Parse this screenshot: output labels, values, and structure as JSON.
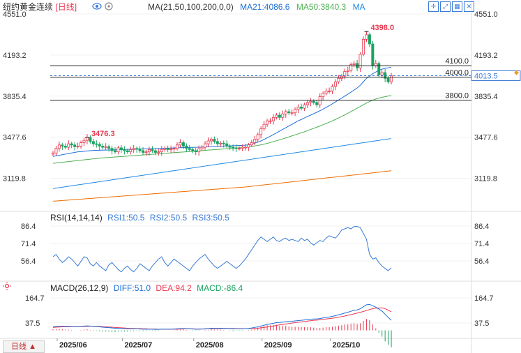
{
  "header": {
    "instrument": "纽约黄金连续",
    "period": "[日线]",
    "ma_params": "MA(21,50,100,200,0,0)",
    "ma21": "MA21:4086.6",
    "ma50": "MA50:3840.3",
    "ma_label": "MA"
  },
  "rsi_header": {
    "params": "RSI(14,14,14)",
    "rsi1": "RSI1:50.5",
    "rsi2": "RSI2:50.5",
    "rsi3": "RSI3:50.5"
  },
  "macd_header": {
    "params": "MACD(26,12,9)",
    "diff": "DIFF:51.0",
    "dea": "DEA:94.2",
    "macd": "MACD:-86.4"
  },
  "period_button": "日线 ▲",
  "colors": {
    "up": "#e8384f",
    "down": "#1aa260",
    "ma21": "#1e6fd9",
    "ma50": "#4caf50",
    "ma100": "#1e88e5",
    "ma200": "#ef6c00",
    "rsi": "#3a7bd5",
    "diff": "#1e6fd9",
    "dea": "#e8384f",
    "accent": "#3a7bd5"
  },
  "icons": [
    "crosshair-icon",
    "expand-icon",
    "grid-icon",
    "close-icon",
    "eye-icon",
    "settings-icon"
  ],
  "chart_data": [
    {
      "type": "candlestick",
      "name": "price",
      "x_ticks": [
        "2025/06",
        "2025/07",
        "2025/08",
        "2025/09",
        "2025/10"
      ],
      "y_ticks": [
        4551.0,
        4193.2,
        3835.4,
        3477.6,
        3119.8
      ],
      "ylim": [
        2880,
        4551
      ],
      "levels": [
        {
          "label": "4100.0",
          "value": 4100.0
        },
        {
          "label": "4000.0",
          "value": 4000.0
        },
        {
          "label": "3800.0",
          "value": 3800.0
        }
      ],
      "last_price": "4013.5",
      "annotations": [
        {
          "label": "4398.0",
          "value": 4398.0,
          "kind": "high"
        },
        {
          "label": "3476.3",
          "value": 3476.3,
          "kind": "high"
        }
      ],
      "closes": [
        3340,
        3380,
        3410,
        3400,
        3390,
        3420,
        3410,
        3395,
        3400,
        3430,
        3450,
        3476,
        3440,
        3420,
        3415,
        3400,
        3390,
        3395,
        3380,
        3360,
        3350,
        3385,
        3370,
        3360,
        3350,
        3370,
        3380,
        3375,
        3360,
        3345,
        3350,
        3370,
        3360,
        3345,
        3350,
        3370,
        3380,
        3370,
        3375,
        3380,
        3410,
        3430,
        3400,
        3380,
        3370,
        3360,
        3350,
        3375,
        3390,
        3420,
        3445,
        3460,
        3440,
        3420,
        3425,
        3420,
        3400,
        3390,
        3385,
        3380,
        3380,
        3390,
        3390,
        3410,
        3430,
        3460,
        3500,
        3550,
        3590,
        3620,
        3620,
        3650,
        3670,
        3650,
        3680,
        3700,
        3690,
        3690,
        3720,
        3740,
        3730,
        3760,
        3780,
        3790,
        3780,
        3760,
        3830,
        3860,
        3880,
        3880,
        3920,
        3960,
        3990,
        4010,
        4050,
        4060,
        4110,
        4120,
        4080,
        4200,
        4330,
        4370,
        4290,
        4100,
        4120,
        4020,
        4040,
        3990,
        3960,
        4013.5
      ],
      "ma21": [
        3310,
        3315,
        3320,
        3325,
        3330,
        3335,
        3340,
        3345,
        3350,
        3352,
        3355,
        3358,
        3360,
        3362,
        3363,
        3364,
        3365,
        3365,
        3366,
        3367,
        3368,
        3369,
        3370,
        3371,
        3372,
        3372,
        3373,
        3374,
        3375,
        3375,
        3376,
        3377,
        3378,
        3378,
        3379,
        3380,
        3381,
        3382,
        3383,
        3384,
        3385,
        3386,
        3387,
        3388,
        3388,
        3389,
        3390,
        3390,
        3392,
        3393,
        3394,
        3396,
        3397,
        3398,
        3399,
        3400,
        3401,
        3402,
        3403,
        3404,
        3405,
        3406,
        3408,
        3412,
        3418,
        3425,
        3435,
        3445,
        3458,
        3472,
        3486,
        3500,
        3515,
        3530,
        3545,
        3560,
        3575,
        3590,
        3605,
        3620,
        3632,
        3645,
        3658,
        3670,
        3682,
        3695,
        3708,
        3722,
        3737,
        3752,
        3768,
        3785,
        3802,
        3818,
        3836,
        3852,
        3870,
        3888,
        3906,
        3930,
        3960,
        3990,
        4010,
        4030,
        4045,
        4060,
        4070,
        4076,
        4082,
        4086.6
      ],
      "ma50": [
        3250,
        3253,
        3256,
        3259,
        3262,
        3265,
        3268,
        3271,
        3274,
        3277,
        3280,
        3283,
        3286,
        3289,
        3292,
        3295,
        3297,
        3299,
        3301,
        3303,
        3305,
        3307,
        3309,
        3311,
        3313,
        3315,
        3317,
        3319,
        3321,
        3323,
        3325,
        3327,
        3329,
        3331,
        3333,
        3335,
        3337,
        3339,
        3341,
        3343,
        3345,
        3347,
        3349,
        3351,
        3353,
        3355,
        3357,
        3359,
        3361,
        3363,
        3365,
        3367,
        3369,
        3371,
        3373,
        3375,
        3377,
        3379,
        3381,
        3383,
        3385,
        3387,
        3390,
        3393,
        3397,
        3401,
        3406,
        3411,
        3417,
        3424,
        3431,
        3439,
        3447,
        3455,
        3463,
        3471,
        3480,
        3489,
        3498,
        3507,
        3516,
        3525,
        3535,
        3545,
        3555,
        3565,
        3575,
        3586,
        3597,
        3608,
        3620,
        3632,
        3645,
        3658,
        3672,
        3686,
        3701,
        3716,
        3730,
        3745,
        3760,
        3775,
        3788,
        3800,
        3810,
        3818,
        3825,
        3830,
        3836,
        3840.3
      ],
      "ma100": [
        3030,
        3034,
        3038,
        3042,
        3046,
        3050,
        3054,
        3058,
        3062,
        3066,
        3070,
        3074,
        3078,
        3082,
        3086,
        3090,
        3094,
        3098,
        3102,
        3106,
        3110,
        3114,
        3118,
        3122,
        3126,
        3130,
        3134,
        3138,
        3142,
        3146,
        3150,
        3154,
        3158,
        3162,
        3166,
        3170,
        3174,
        3178,
        3182,
        3186,
        3190,
        3194,
        3198,
        3202,
        3206,
        3210,
        3214,
        3218,
        3222,
        3226,
        3230,
        3234,
        3238,
        3242,
        3246,
        3250,
        3254,
        3258,
        3262,
        3266,
        3270,
        3274,
        3278,
        3282,
        3286,
        3290,
        3294,
        3298,
        3302,
        3306,
        3310,
        3314,
        3318,
        3322,
        3326,
        3330,
        3334,
        3338,
        3342,
        3346,
        3350,
        3354,
        3358,
        3362,
        3366,
        3370,
        3374,
        3378,
        3382,
        3386,
        3390,
        3394,
        3398,
        3402,
        3406,
        3410,
        3414,
        3418,
        3422,
        3426,
        3430,
        3434,
        3438,
        3442,
        3446,
        3450,
        3454,
        3458,
        3462,
        3466
      ],
      "ma200": [
        2920,
        2922,
        2924,
        2926,
        2928,
        2930,
        2932,
        2934,
        2936,
        2938,
        2940,
        2942,
        2944,
        2946,
        2948,
        2950,
        2952,
        2954,
        2956,
        2958,
        2960,
        2962,
        2964,
        2966,
        2968,
        2970,
        2972,
        2974,
        2976,
        2978,
        2980,
        2982,
        2984,
        2986,
        2988,
        2990,
        2992,
        2994,
        2996,
        2998,
        3000,
        3002,
        3004,
        3006,
        3008,
        3010,
        3012,
        3014,
        3016,
        3018,
        3020,
        3022,
        3024,
        3026,
        3028,
        3030,
        3032,
        3034,
        3036,
        3038,
        3040,
        3042,
        3044,
        3047,
        3050,
        3053,
        3056,
        3059,
        3062,
        3065,
        3068,
        3071,
        3074,
        3077,
        3080,
        3083,
        3086,
        3089,
        3092,
        3095,
        3098,
        3101,
        3104,
        3107,
        3110,
        3113,
        3116,
        3119,
        3122,
        3125,
        3128,
        3131,
        3134,
        3137,
        3140,
        3143,
        3146,
        3149,
        3152,
        3155,
        3158,
        3161,
        3164,
        3167,
        3170,
        3173,
        3176,
        3179,
        3182,
        3185
      ]
    },
    {
      "type": "line",
      "name": "rsi",
      "y_ticks": [
        86.4,
        71.4,
        56.4
      ],
      "ylim": [
        42,
        90
      ],
      "values": [
        60,
        62,
        58,
        55,
        57,
        60,
        58,
        55,
        52,
        56,
        60,
        59,
        54,
        52,
        55,
        52,
        50,
        48,
        53,
        55,
        52,
        49,
        47,
        50,
        52,
        49,
        47,
        50,
        54,
        52,
        50,
        48,
        52,
        55,
        58,
        60,
        55,
        52,
        55,
        58,
        56,
        54,
        52,
        50,
        48,
        52,
        55,
        58,
        60,
        62,
        58,
        55,
        52,
        50,
        52,
        54,
        56,
        54,
        52,
        50,
        52,
        55,
        58,
        62,
        66,
        70,
        74,
        77,
        75,
        73,
        75,
        77,
        74,
        73,
        75,
        76,
        74,
        75,
        74,
        73,
        76,
        74,
        75,
        72,
        70,
        72,
        74,
        73,
        76,
        78,
        77,
        76,
        79,
        83,
        84,
        85,
        84,
        86,
        86,
        85,
        80,
        75,
        62,
        58,
        59,
        55,
        52,
        50,
        48,
        50.5
      ]
    },
    {
      "type": "bar+line",
      "name": "macd",
      "y_ticks": [
        164.7,
        37.5
      ],
      "ylim": [
        -30,
        190
      ],
      "diff": [
        18,
        20,
        21,
        21,
        20,
        20,
        20,
        19,
        19,
        20,
        22,
        23,
        22,
        20,
        19,
        18,
        16,
        15,
        14,
        12,
        11,
        11,
        10,
        9,
        8,
        8,
        8,
        8,
        7,
        6,
        6,
        6,
        6,
        5,
        5,
        6,
        6,
        6,
        6,
        7,
        8,
        9,
        9,
        9,
        8,
        7,
        6,
        6,
        7,
        8,
        9,
        11,
        11,
        11,
        11,
        11,
        10,
        9,
        8,
        8,
        8,
        8,
        9,
        10,
        12,
        15,
        18,
        22,
        26,
        30,
        33,
        36,
        39,
        40,
        42,
        44,
        45,
        46,
        48,
        50,
        51,
        53,
        55,
        57,
        58,
        58,
        60,
        63,
        66,
        68,
        71,
        75,
        79,
        83,
        88,
        92,
        97,
        102,
        104,
        110,
        120,
        130,
        132,
        125,
        118,
        108,
        98,
        82,
        66,
        51
      ],
      "dea": [
        15,
        16,
        17,
        18,
        18,
        18,
        19,
        19,
        19,
        19,
        20,
        20,
        21,
        21,
        20,
        20,
        19,
        18,
        17,
        16,
        15,
        14,
        13,
        12,
        11,
        10,
        10,
        9,
        9,
        8,
        8,
        7,
        7,
        7,
        6,
        6,
        6,
        6,
        6,
        6,
        6,
        7,
        7,
        8,
        8,
        8,
        7,
        7,
        7,
        7,
        8,
        8,
        9,
        9,
        9,
        10,
        10,
        10,
        10,
        9,
        9,
        9,
        9,
        9,
        10,
        10,
        11,
        13,
        15,
        17,
        20,
        22,
        25,
        28,
        30,
        32,
        35,
        37,
        39,
        41,
        43,
        45,
        47,
        49,
        51,
        52,
        54,
        56,
        58,
        60,
        62,
        64,
        67,
        70,
        73,
        77,
        80,
        84,
        88,
        92,
        96,
        101,
        106,
        110,
        113,
        114,
        114,
        110,
        103,
        94.2
      ]
    }
  ]
}
